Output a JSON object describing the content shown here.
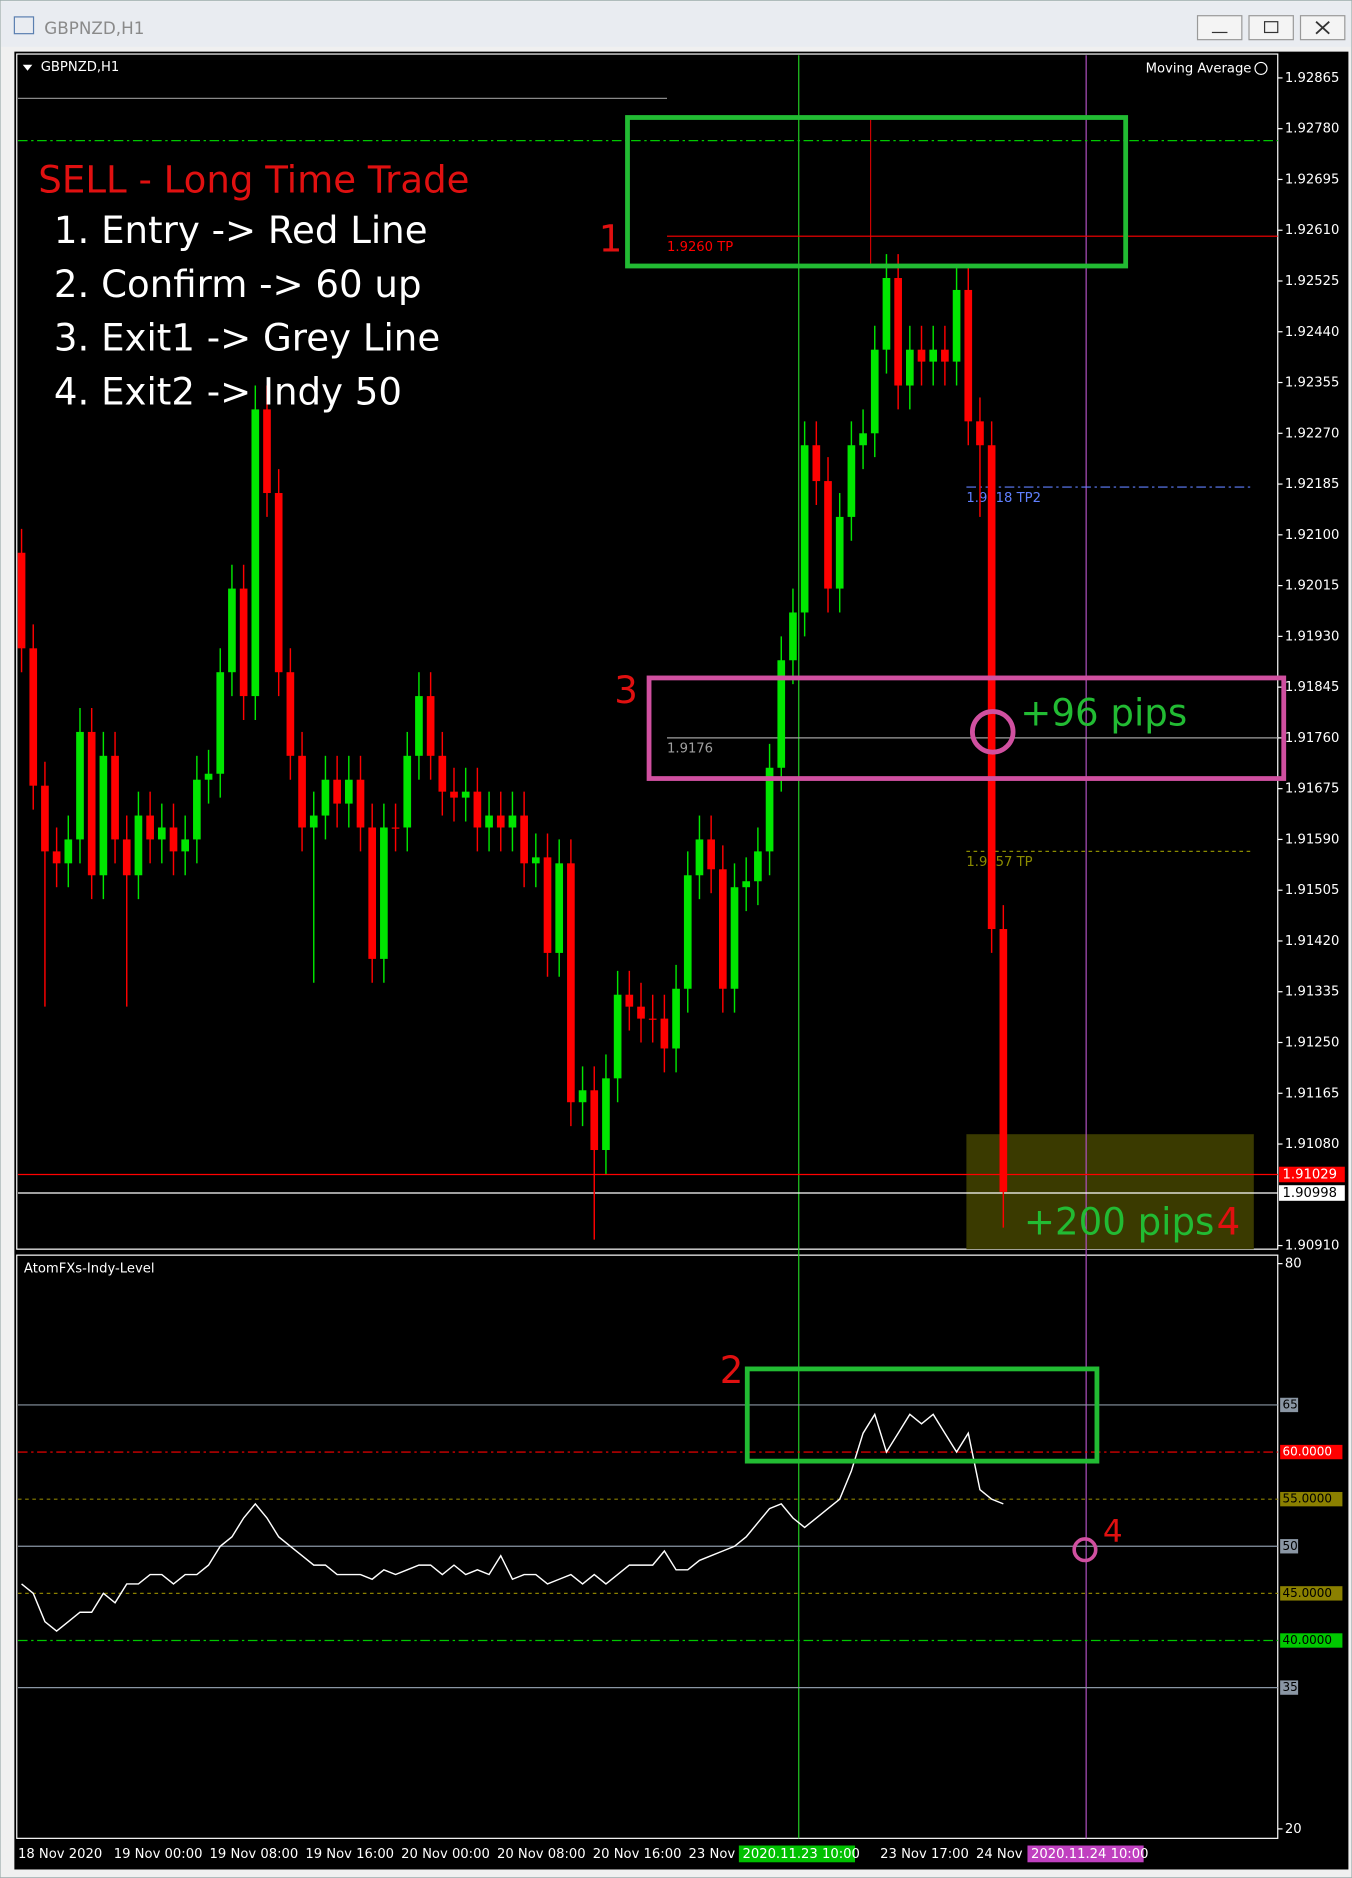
{
  "window_title": "GBPNZD,H1",
  "chart_data": [
    {
      "type": "candlestick",
      "title": "GBPNZD,H1",
      "overlay": "Moving Average",
      "up_color": "#00e600",
      "down_color": "#ff0000",
      "open": [
        1.9207,
        1.9191,
        1.9168,
        1.9157,
        1.9155,
        1.9159,
        1.9177,
        1.9153,
        1.9173,
        1.9159,
        1.9153,
        1.9163,
        1.9159,
        1.9161,
        1.9157,
        1.9159,
        1.9169,
        1.917,
        1.9187,
        1.9201,
        1.9183,
        1.9231,
        1.9217,
        1.9187,
        1.9173,
        1.9161,
        1.9163,
        1.9169,
        1.9165,
        1.9169,
        1.9161,
        1.9139,
        1.9161,
        1.9161,
        1.9173,
        1.9183,
        1.9173,
        1.9167,
        1.9166,
        1.9167,
        1.9161,
        1.9163,
        1.9161,
        1.9163,
        1.9155,
        1.9156,
        1.914,
        1.9155,
        1.9115,
        1.9117,
        1.9107,
        1.9119,
        1.9133,
        1.9131,
        1.9129,
        1.9129,
        1.9124,
        1.9134,
        1.9153,
        1.9159,
        1.9154,
        1.9134,
        1.9151,
        1.9152,
        1.9157,
        1.9171,
        1.9189,
        1.9197,
        1.9225,
        1.9219,
        1.9201,
        1.9213,
        1.9225,
        1.9227,
        1.9241,
        1.9253,
        1.9235,
        1.9241,
        1.9239,
        1.9241,
        1.9239,
        1.9251,
        1.9229,
        1.9225,
        1.9144
      ],
      "high": [
        1.9211,
        1.9195,
        1.9172,
        1.9161,
        1.9163,
        1.9181,
        1.9181,
        1.9177,
        1.9177,
        1.9163,
        1.9167,
        1.9167,
        1.9165,
        1.9165,
        1.9163,
        1.9173,
        1.9174,
        1.9191,
        1.9205,
        1.9205,
        1.9235,
        1.9235,
        1.9221,
        1.9191,
        1.9177,
        1.9167,
        1.9173,
        1.9173,
        1.9173,
        1.9173,
        1.9165,
        1.9165,
        1.9165,
        1.9177,
        1.9187,
        1.9187,
        1.9177,
        1.9171,
        1.9171,
        1.9171,
        1.9167,
        1.9167,
        1.9167,
        1.9167,
        1.916,
        1.916,
        1.9159,
        1.9159,
        1.9121,
        1.9121,
        1.9123,
        1.9137,
        1.9137,
        1.9135,
        1.9133,
        1.9133,
        1.9138,
        1.9157,
        1.9163,
        1.9163,
        1.9158,
        1.9155,
        1.9156,
        1.9161,
        1.9175,
        1.9193,
        1.9201,
        1.9229,
        1.9229,
        1.9223,
        1.9217,
        1.9229,
        1.9231,
        1.9245,
        1.9257,
        1.9257,
        1.9245,
        1.9245,
        1.9245,
        1.9245,
        1.9255,
        1.9255,
        1.9233,
        1.9229,
        1.9148
      ],
      "low": [
        1.9187,
        1.9164,
        1.9131,
        1.9151,
        1.9151,
        1.9155,
        1.9149,
        1.9149,
        1.9155,
        1.9131,
        1.9149,
        1.9155,
        1.9155,
        1.9153,
        1.9153,
        1.9155,
        1.9165,
        1.9166,
        1.9183,
        1.9179,
        1.9179,
        1.9213,
        1.9183,
        1.9169,
        1.9157,
        1.9135,
        1.9159,
        1.9161,
        1.9161,
        1.9157,
        1.9135,
        1.9135,
        1.9157,
        1.9157,
        1.9169,
        1.9169,
        1.9163,
        1.9162,
        1.9162,
        1.9157,
        1.9157,
        1.9157,
        1.9157,
        1.9151,
        1.9151,
        1.9136,
        1.9136,
        1.9111,
        1.9111,
        1.9092,
        1.9103,
        1.9115,
        1.9127,
        1.9125,
        1.9125,
        1.912,
        1.912,
        1.913,
        1.9149,
        1.915,
        1.913,
        1.913,
        1.9147,
        1.9148,
        1.9153,
        1.9167,
        1.9185,
        1.9193,
        1.9215,
        1.9197,
        1.9197,
        1.9209,
        1.9221,
        1.9223,
        1.9237,
        1.9231,
        1.9231,
        1.9235,
        1.9235,
        1.9235,
        1.9235,
        1.9225,
        1.9213,
        1.914,
        1.9094
      ],
      "close": [
        1.9191,
        1.9168,
        1.9157,
        1.9155,
        1.9159,
        1.9177,
        1.9153,
        1.9173,
        1.9159,
        1.9153,
        1.9163,
        1.9159,
        1.9161,
        1.9157,
        1.9159,
        1.9169,
        1.917,
        1.9187,
        1.9201,
        1.9183,
        1.9231,
        1.9217,
        1.9187,
        1.9173,
        1.9161,
        1.9163,
        1.9169,
        1.9165,
        1.9169,
        1.9161,
        1.9139,
        1.9161,
        1.9161,
        1.9173,
        1.9183,
        1.9173,
        1.9167,
        1.9166,
        1.9167,
        1.9161,
        1.9163,
        1.9161,
        1.9163,
        1.9155,
        1.9156,
        1.914,
        1.9155,
        1.9115,
        1.9117,
        1.9107,
        1.9119,
        1.9133,
        1.9131,
        1.9129,
        1.9129,
        1.9124,
        1.9134,
        1.9153,
        1.9159,
        1.9154,
        1.9134,
        1.9151,
        1.9152,
        1.9157,
        1.9171,
        1.9189,
        1.9197,
        1.9225,
        1.9219,
        1.9201,
        1.9213,
        1.9225,
        1.9227,
        1.9241,
        1.9253,
        1.9235,
        1.9241,
        1.9239,
        1.9241,
        1.9239,
        1.9251,
        1.9229,
        1.9225,
        1.9144,
        1.91
      ],
      "ylim": [
        1.90904,
        1.92905
      ],
      "yticks": [
        1.92865,
        {
          "value": 1.9278,
          "label": "1.92780"
        },
        1.92695,
        {
          "value": 1.9261,
          "label": "1.92610"
        },
        1.92525,
        {
          "value": 1.9244,
          "label": "1.92440"
        },
        1.92355,
        {
          "value": 1.9227,
          "label": "1.92270"
        },
        1.92185,
        {
          "value": 1.921,
          "label": "1.92100"
        },
        1.92015,
        {
          "value": 1.9193,
          "label": "1.91930"
        },
        1.91845,
        {
          "value": 1.9176,
          "label": "1.91760"
        },
        1.91675,
        {
          "value": 1.9159,
          "label": "1.91590"
        },
        1.91505,
        {
          "value": 1.9142,
          "label": "1.91420"
        },
        1.91335,
        {
          "value": 1.9125,
          "label": "1.91250"
        },
        1.91165,
        {
          "value": 1.9108,
          "label": "1.91080"
        },
        {
          "value": 1.9091,
          "label": "1.90910"
        }
      ],
      "levels": [
        {
          "value": 1.9276,
          "color": "#00c800",
          "style": "dashdot"
        },
        {
          "value": 1.926,
          "label": "1.9260 TP",
          "color": "#ff0000",
          "style": "solid"
        },
        {
          "value": 1.9176,
          "label": "1.9176",
          "color": "#a0a0a0",
          "style": "solid"
        },
        {
          "value": 1.9218,
          "label": "1.9218 TP2",
          "color": "#6080ff",
          "style": "dashdot"
        },
        {
          "value": 1.9157,
          "label": "1.9157 TP",
          "color": "#8b8b00",
          "style": "dotted"
        }
      ],
      "price_tags": [
        {
          "value": 1.91029,
          "color": "#ff0000"
        },
        {
          "value": 1.90998,
          "color": "#ffffff"
        }
      ]
    },
    {
      "type": "line",
      "title": "AtomFXs-Indy-Level",
      "color": "#ffffff",
      "values": [
        46,
        45,
        42,
        41,
        42,
        43,
        43,
        45,
        44,
        46,
        46,
        47,
        47,
        46,
        47,
        47,
        48,
        50,
        51,
        53,
        54.5,
        53,
        51,
        50,
        49,
        48,
        48,
        47,
        47,
        47,
        46.5,
        47.5,
        47,
        47.5,
        48,
        48,
        47,
        48,
        47,
        47.5,
        47,
        49,
        46.5,
        47,
        47,
        46,
        46.5,
        47,
        46,
        47,
        46,
        47,
        48,
        48,
        48,
        49.5,
        47.5,
        47.5,
        48.5,
        49,
        49.5,
        50,
        51,
        52.5,
        54,
        54.5,
        53,
        52,
        53,
        54,
        55,
        58,
        62,
        64,
        60,
        62,
        64,
        63,
        64,
        62,
        60,
        62,
        56,
        55,
        54.5
      ],
      "ylim": [
        19,
        80.9
      ],
      "yticks": [
        80,
        20
      ],
      "levels": [
        {
          "value": 65,
          "color": "#8a96a4",
          "style": "solid"
        },
        {
          "value": 60,
          "label": "60.0000",
          "color": "#ff0000",
          "style": "dashdot"
        },
        {
          "value": 55,
          "label": "55.0000",
          "color": "#8b8000",
          "style": "dotted"
        },
        {
          "value": 50,
          "color": "#8a96a4",
          "style": "solid"
        },
        {
          "value": 45,
          "label": "45.0000",
          "color": "#8b8000",
          "style": "dotted"
        },
        {
          "value": 40,
          "label": "40.0000",
          "color": "#00c800",
          "style": "dashdot"
        },
        {
          "value": 35,
          "color": "#8a96a4",
          "style": "solid"
        }
      ]
    }
  ],
  "time_axis": {
    "labels": [
      "18 Nov 2020",
      "19 Nov 00:00",
      "19 Nov 08:00",
      "19 Nov 16:00",
      "20 Nov 00:00",
      "20 Nov 08:00",
      "20 Nov 16:00",
      "23 Nov",
      "23 Nov 17:00",
      "24 Nov"
    ],
    "highlights": [
      {
        "label": "2020.11.23 10:00",
        "color": "#00c000"
      },
      {
        "label": "2020.11.24 10:00",
        "color": "#c040c0"
      }
    ]
  },
  "annotations": {
    "heading": "SELL - Long Time Trade",
    "steps": [
      "1. Entry -> Red Line",
      "2. Confirm -> 60 up",
      "3. Exit1 -> Grey Line",
      "4. Exit2 -> Indy 50"
    ],
    "markers": [
      "1",
      "2",
      "3",
      "4",
      "4"
    ],
    "pips": [
      "+96 pips",
      "+200 pips"
    ]
  }
}
